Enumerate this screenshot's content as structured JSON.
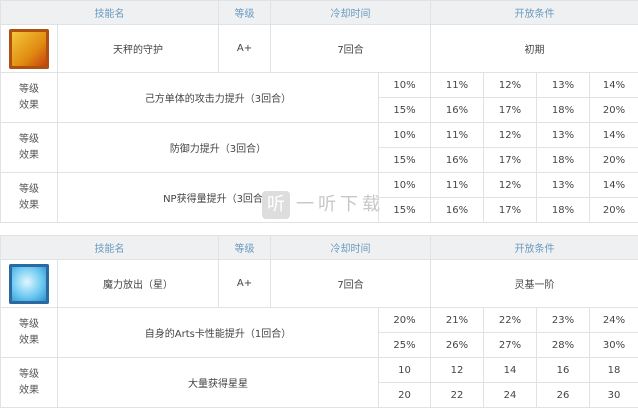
{
  "headers": {
    "name": "技能名",
    "grade": "等级",
    "cooldown": "冷却时间",
    "unlock": "开放条件"
  },
  "effect_label": [
    "等级",
    "效果"
  ],
  "skills": [
    {
      "icon": "sword-shield-skill-icon",
      "name": "天秤的守护",
      "grade": "A+",
      "cooldown": "7回合",
      "unlock": "初期",
      "effects": [
        {
          "desc": "己方单体的攻击力提升（3回合）",
          "row1": [
            "10%",
            "11%",
            "12%",
            "13%",
            "14%"
          ],
          "row2": [
            "15%",
            "16%",
            "17%",
            "18%",
            "20%"
          ]
        },
        {
          "desc": "防御力提升（3回合）",
          "row1": [
            "10%",
            "11%",
            "12%",
            "13%",
            "14%"
          ],
          "row2": [
            "15%",
            "16%",
            "17%",
            "18%",
            "20%"
          ]
        },
        {
          "desc": "NP获得量提升（3回合）",
          "row1": [
            "10%",
            "11%",
            "12%",
            "13%",
            "14%"
          ],
          "row2": [
            "15%",
            "16%",
            "17%",
            "18%",
            "20%"
          ]
        }
      ]
    },
    {
      "icon": "mana-burst-star-skill-icon",
      "name": "魔力放出（星）",
      "grade": "A+",
      "cooldown": "7回合",
      "unlock": "灵基一阶",
      "effects": [
        {
          "desc": "自身的Arts卡性能提升（1回合）",
          "row1": [
            "20%",
            "21%",
            "22%",
            "23%",
            "24%"
          ],
          "row2": [
            "25%",
            "26%",
            "27%",
            "28%",
            "30%"
          ]
        },
        {
          "desc": "大量获得星星",
          "row1": [
            "10",
            "12",
            "14",
            "16",
            "18"
          ],
          "row2": [
            "20",
            "22",
            "24",
            "26",
            "30"
          ]
        }
      ]
    }
  ],
  "watermark": {
    "badge": "听",
    "text": "一听下载"
  }
}
